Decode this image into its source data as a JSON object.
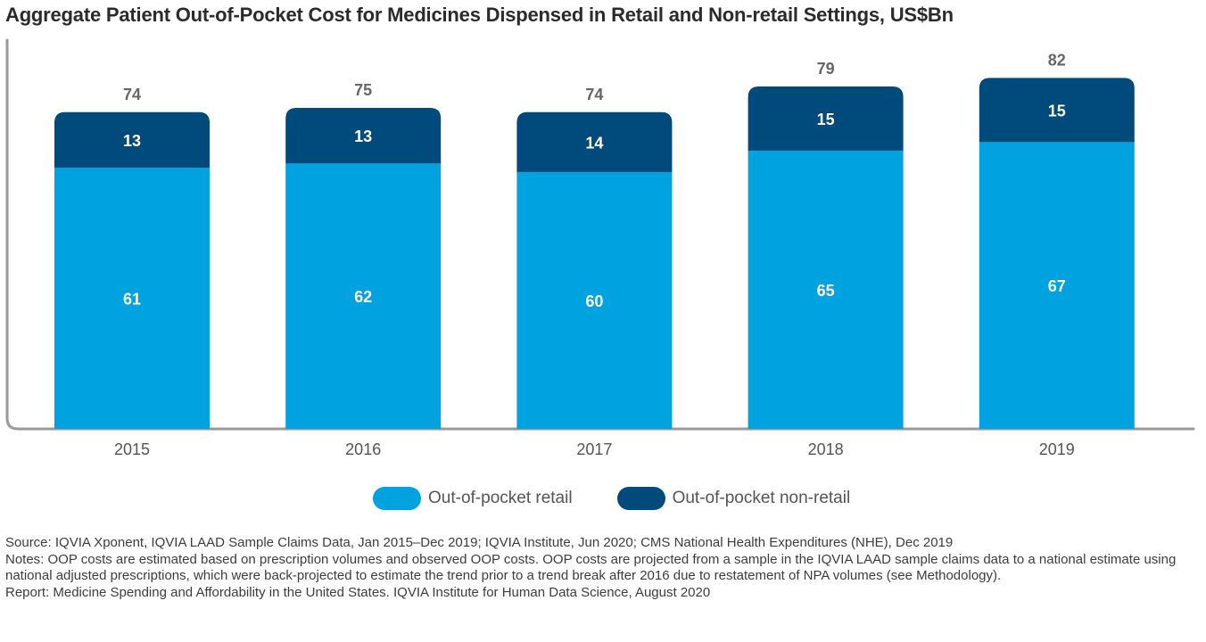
{
  "chart_data": {
    "type": "bar",
    "stacked": true,
    "title": "Aggregate Patient Out-of-Pocket Cost for Medicines Dispensed in Retail and Non-retail Settings, US$Bn",
    "categories": [
      "2015",
      "2016",
      "2017",
      "2018",
      "2019"
    ],
    "series": [
      {
        "name": "Out-of-pocket retail",
        "values": [
          61,
          62,
          60,
          65,
          67
        ],
        "color": "#00a3e0"
      },
      {
        "name": "Out-of-pocket non-retail",
        "values": [
          13,
          13,
          14,
          15,
          15
        ],
        "color": "#004a7c"
      }
    ],
    "totals": [
      74,
      75,
      74,
      79,
      82
    ],
    "xlabel": "",
    "ylabel": "",
    "ylim": [
      0,
      90
    ],
    "grid": false,
    "legend_position": "bottom"
  },
  "legend": {
    "retail_label": "Out-of-pocket retail",
    "nonretail_label": "Out-of-pocket non-retail"
  },
  "footer": {
    "source": "Source: IQVIA Xponent, IQVIA LAAD Sample Claims Data, Jan 2015–Dec 2019; IQVIA Institute, Jun 2020; CMS National Health Expenditures (NHE), Dec 2019",
    "notes": "Notes: OOP costs are estimated based on prescription volumes and observed OOP costs. OOP costs are projected from a sample in the IQVIA LAAD sample claims data to a national estimate using national adjusted prescriptions, which were back-projected to estimate the trend prior to a trend break after 2016 due to restatement of NPA volumes (see Methodology).",
    "report": "Report: Medicine Spending and Affordability in the United States. IQVIA Institute for Human Data Science, August 2020"
  }
}
